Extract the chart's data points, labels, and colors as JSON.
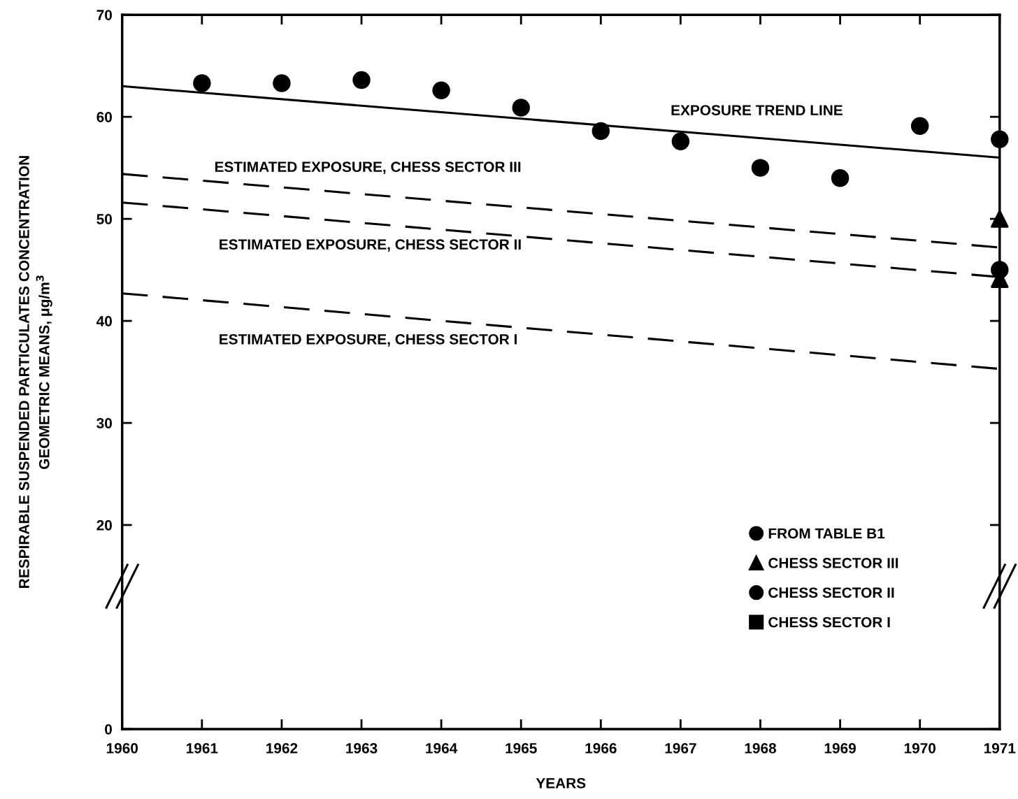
{
  "chart_data": {
    "type": "scatter",
    "xlabel": "YEARS",
    "ylabel": "RESPIRABLE SUSPENDED PARTICULATES CONCENTRATION\nGEOMETRIC MEANS, μg/m$^{3}$",
    "xlim": [
      1960,
      1971
    ],
    "xticks": [
      1960,
      1961,
      1962,
      1963,
      1964,
      1965,
      1966,
      1967,
      1968,
      1969,
      1970,
      1971
    ],
    "ylim": [
      0,
      70
    ],
    "yticks": [
      0,
      20,
      30,
      40,
      50,
      60,
      70
    ],
    "grid": false,
    "legend": "bottom right",
    "series": [
      {
        "name": "EXPOSURE TREND LINE",
        "type": "line",
        "line_style": "solid",
        "marker": "none",
        "color": "#000000",
        "x": [
          1960,
          1971
        ],
        "values": [
          63.0,
          56.0
        ]
      },
      {
        "name": "ESTIMATED EXPOSURE, CHESS SECTOR III",
        "type": "line",
        "line_style": "dashed",
        "marker": "none",
        "color": "#000000",
        "x": [
          1960,
          1971
        ],
        "values": [
          54.4,
          47.2
        ]
      },
      {
        "name": "ESTIMATED EXPOSURE, CHESS SECTOR II",
        "type": "line",
        "line_style": "dashed",
        "marker": "none",
        "color": "#000000",
        "x": [
          1960,
          1971
        ],
        "values": [
          51.6,
          44.3
        ]
      },
      {
        "name": "ESTIMATED EXPOSURE, CHESS SECTOR I",
        "type": "line",
        "line_style": "dashed",
        "marker": "none",
        "color": "#000000",
        "x": [
          1960,
          1971
        ],
        "values": [
          42.7,
          35.3
        ]
      },
      {
        "name": "FROM TABLE B1",
        "marker": "circle",
        "color": "#000000",
        "x": [
          1961,
          1962,
          1963,
          1964,
          1965,
          1966,
          1967,
          1968,
          1969,
          1970,
          1971
        ],
        "values": [
          63.3,
          63.3,
          63.6,
          62.6,
          60.9,
          58.6,
          57.6,
          55.0,
          54.0,
          59.1,
          57.8
        ]
      },
      {
        "name": "CHESS SECTOR III",
        "marker": "triangle",
        "color": "#000000",
        "x": [
          1971,
          1971
        ],
        "values": [
          50.0,
          44.1
        ]
      },
      {
        "name": "CHESS SECTOR II",
        "marker": "circle",
        "color": "#000000",
        "x": [
          1971
        ],
        "values": [
          45.0
        ]
      },
      {
        "name": "CHESS SECTOR I",
        "marker": "square",
        "color": "#000000"
      }
    ]
  }
}
